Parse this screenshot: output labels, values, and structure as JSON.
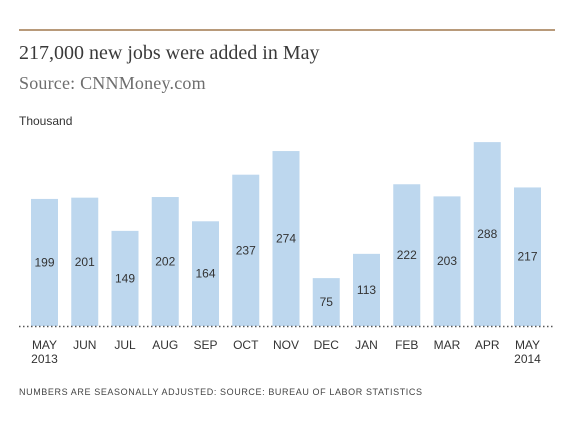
{
  "header": {
    "title": "217,000 new jobs were added in May",
    "source": "Source: CNNMoney.com"
  },
  "chart_data": {
    "type": "bar",
    "ylabel": "Thousand",
    "categories": [
      "MAY",
      "JUN",
      "JUL",
      "AUG",
      "SEP",
      "OCT",
      "NOV",
      "DEC",
      "JAN",
      "FEB",
      "MAR",
      "APR",
      "MAY"
    ],
    "category_years": [
      "2013",
      "",
      "",
      "",
      "",
      "",
      "",
      "",
      "",
      "",
      "",
      "",
      "2014"
    ],
    "values": [
      199,
      201,
      149,
      202,
      164,
      237,
      274,
      75,
      113,
      222,
      203,
      288,
      217
    ],
    "ylim": [
      0,
      300
    ],
    "grid": false,
    "bar_color": "#bdd7ee",
    "baseline_style": "dotted"
  },
  "footnote": "NUMBERS ARE SEASONALLY ADJUSTED: SOURCE: BUREAU OF LABOR STATISTICS"
}
